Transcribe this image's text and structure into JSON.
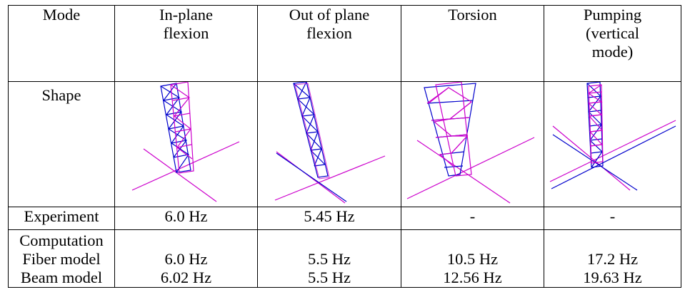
{
  "table": {
    "header": {
      "mode_label": "Mode",
      "columns": [
        "In-plane\nflexion",
        "Out of plane\nflexion",
        "Torsion",
        "Pumping\n(vertical\nmode)"
      ]
    },
    "shape_row": {
      "label": "Shape",
      "images": [
        "in-plane-flexion-shape",
        "out-of-plane-flexion-shape",
        "torsion-shape",
        "pumping-shape"
      ]
    },
    "experiment_row": {
      "label": "Experiment",
      "values": [
        "6.0 Hz",
        "5.45 Hz",
        "-",
        "-"
      ]
    },
    "computation_row": {
      "label": "Computation",
      "fiber_label": "Fiber model",
      "beam_label": "Beam model",
      "fiber_values": [
        "6.0 Hz",
        "5.5 Hz",
        "10.5 Hz",
        "17.2 Hz"
      ],
      "beam_values": [
        "6.02 Hz",
        "5.5 Hz",
        "12.56 Hz",
        "19.63 Hz"
      ]
    }
  },
  "colors": {
    "undeformed": "#0000cc",
    "deformed": "#cc00cc"
  }
}
